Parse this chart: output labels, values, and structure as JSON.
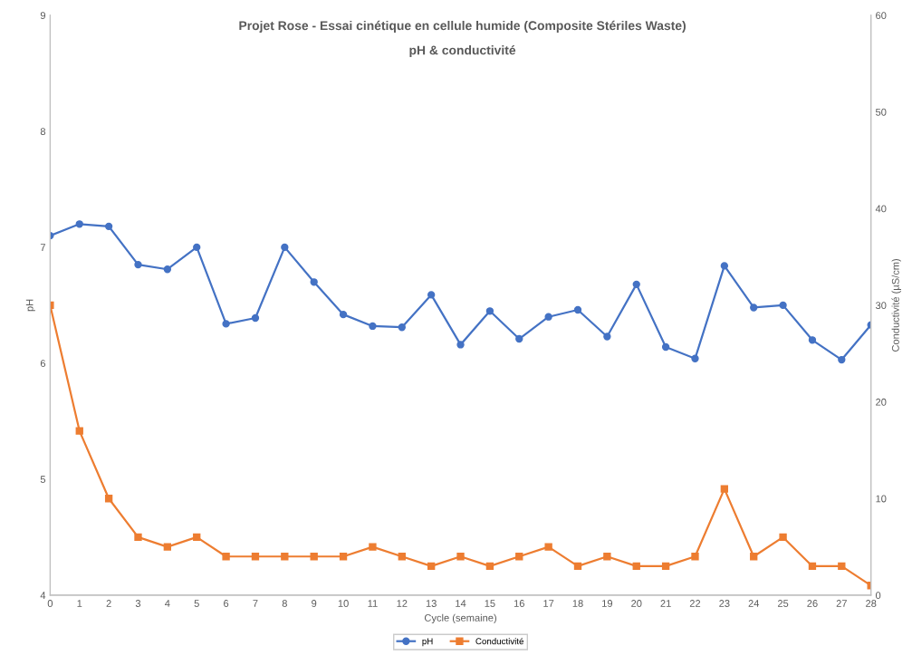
{
  "chart_data": {
    "type": "line",
    "title": "Projet Rose - Essai cinétique en cellule humide (Composite Stériles Waste)",
    "subtitle": "pH & conductivité",
    "xlabel": "Cycle (semaine)",
    "ylabel": "pH",
    "y2label": "Conductivité (µS/cm)",
    "x": [
      0,
      1,
      2,
      3,
      4,
      5,
      6,
      7,
      8,
      9,
      10,
      11,
      12,
      13,
      14,
      15,
      16,
      17,
      18,
      19,
      20,
      21,
      22,
      23,
      24,
      25,
      26,
      27,
      28
    ],
    "series": [
      {
        "name": "pH",
        "color": "#4472c4",
        "marker": "circle",
        "values": [
          7.1,
          7.2,
          7.18,
          6.85,
          6.81,
          7.0,
          6.34,
          6.39,
          7.0,
          6.7,
          6.42,
          6.32,
          6.31,
          6.59,
          6.16,
          6.45,
          6.21,
          6.4,
          6.46,
          6.23,
          6.68,
          6.14,
          6.04,
          6.84,
          6.48,
          6.5,
          6.2,
          6.03,
          6.33
        ]
      },
      {
        "name": "Conductivité",
        "color": "#ed7d31",
        "marker": "square",
        "axis": "y2",
        "values": [
          30,
          17,
          10,
          6,
          5,
          6,
          4,
          4,
          4,
          4,
          4,
          5,
          4,
          3,
          4,
          3,
          4,
          5,
          3,
          4,
          3,
          3,
          4,
          11,
          4,
          6,
          3,
          3,
          1
        ]
      }
    ],
    "xlim": [
      0,
      28
    ],
    "xticks": [
      0,
      1,
      2,
      3,
      4,
      5,
      6,
      7,
      8,
      9,
      10,
      11,
      12,
      13,
      14,
      15,
      16,
      17,
      18,
      19,
      20,
      21,
      22,
      23,
      24,
      25,
      26,
      27,
      28
    ],
    "ylim": [
      4,
      9
    ],
    "yticks": [
      4,
      5,
      6,
      7,
      8,
      9
    ],
    "y2lim": [
      0,
      60
    ],
    "y2ticks": [
      0,
      10,
      20,
      30,
      40,
      50,
      60
    ],
    "grid": false,
    "legend": "bottom",
    "line_style": "solid"
  }
}
